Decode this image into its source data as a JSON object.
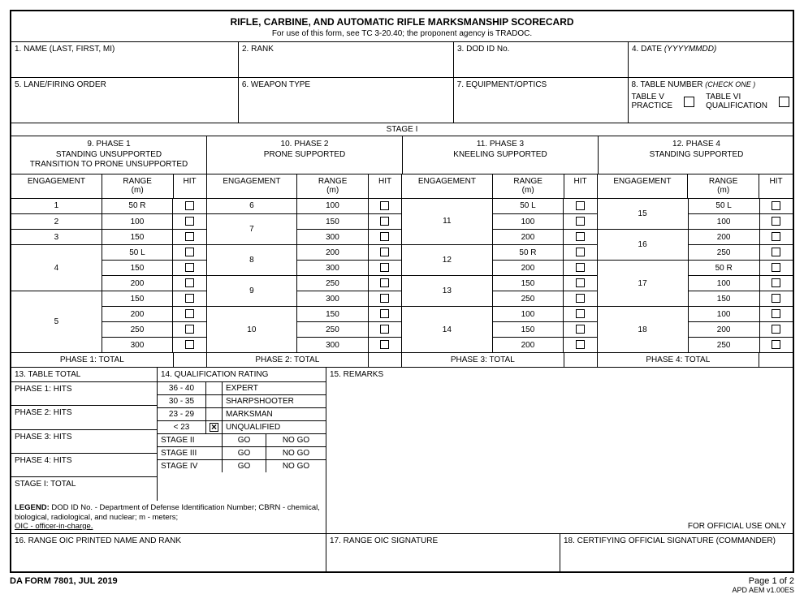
{
  "title": "RIFLE, CARBINE, AND AUTOMATIC RIFLE MARKSMANSHIP SCORECARD",
  "subtitle": "For use of this form, see TC 3-20.40; the proponent agency is TRADOC.",
  "fields_row1": {
    "name": "1. NAME (LAST, FIRST, MI)",
    "rank": "2. RANK",
    "dod": "3. DOD ID No.",
    "date_lbl": "4. DATE ",
    "date_hint": "(YYYYMMDD)"
  },
  "fields_row2": {
    "lane": "5. LANE/FIRING ORDER",
    "weapon": "6. WEAPON TYPE",
    "equip": "7. EQUIPMENT/OPTICS",
    "table_lbl": "8. TABLE NUMBER ",
    "table_hint": "(CHECK ONE )",
    "tbl5a": "TABLE V",
    "tbl5b": "PRACTICE",
    "tbl6a": "TABLE VI",
    "tbl6b": "QUALIFICATION"
  },
  "stage_label": "STAGE I",
  "phases": [
    {
      "num": "9. PHASE 1",
      "l1": "STANDING UNSUPPORTED",
      "l2": "TRANSITION TO PRONE UNSUPPORTED"
    },
    {
      "num": "10. PHASE 2",
      "l1": "PRONE SUPPORTED",
      "l2": ""
    },
    {
      "num": "11. PHASE 3",
      "l1": "KNEELING SUPPORTED",
      "l2": ""
    },
    {
      "num": "12. PHASE 4",
      "l1": "STANDING SUPPORTED",
      "l2": ""
    }
  ],
  "col_heads": {
    "eng": "ENGAGEMENT",
    "range": "RANGE\n(m)",
    "hit": "HIT"
  },
  "phase1_rows": [
    {
      "eng": "1",
      "range": "50 R",
      "span": 1
    },
    {
      "eng": "2",
      "range": "100",
      "span": 1
    },
    {
      "eng": "3",
      "range": "150",
      "span": 1
    },
    {
      "eng": "4",
      "range": "50 L",
      "span": 3,
      "more": [
        "150",
        "200"
      ]
    },
    {
      "eng": "5",
      "range": "150",
      "span": 4,
      "more": [
        "200",
        "250",
        "300"
      ]
    }
  ],
  "phase2_rows": [
    {
      "eng": "6",
      "range": "100",
      "span": 1
    },
    {
      "eng": "7",
      "range": "150",
      "span": 2,
      "more": [
        "300"
      ]
    },
    {
      "eng": "8",
      "range": "200",
      "span": 2,
      "more": [
        "300"
      ]
    },
    {
      "eng": "9",
      "range": "250",
      "span": 2,
      "more": [
        "300"
      ]
    },
    {
      "eng": "10",
      "range": "150",
      "span": 3,
      "more": [
        "250",
        "300"
      ]
    }
  ],
  "phase3_rows": [
    {
      "eng": "11",
      "range": "50 L",
      "span": 3,
      "more": [
        "100",
        "200"
      ]
    },
    {
      "eng": "12",
      "range": "50 R",
      "span": 2,
      "more": [
        "200"
      ]
    },
    {
      "eng": "13",
      "range": "150",
      "span": 2,
      "more": [
        "250"
      ]
    },
    {
      "eng": "14",
      "range": "100",
      "span": 3,
      "more": [
        "150",
        "200"
      ]
    }
  ],
  "phase4_rows": [
    {
      "eng": "15",
      "range": "50 L",
      "span": 2,
      "more": [
        "100"
      ]
    },
    {
      "eng": "16",
      "range": "200",
      "span": 2,
      "more": [
        "250"
      ]
    },
    {
      "eng": "17",
      "range": "50 R",
      "span": 3,
      "more": [
        "100",
        "150"
      ]
    },
    {
      "eng": "18",
      "range": "100",
      "span": 3,
      "more": [
        "200",
        "250"
      ]
    }
  ],
  "phase_totals": [
    "PHASE 1:  TOTAL",
    "PHASE 2:  TOTAL",
    "PHASE 3:  TOTAL",
    "PHASE 4:  TOTAL"
  ],
  "table_total_hdr": "13. TABLE TOTAL",
  "qual_hdr": "14. QUALIFICATION RATING",
  "remarks_hdr": "15. REMARKS",
  "table_total_lines": [
    "PHASE 1: HITS",
    "PHASE 2: HITS",
    "PHASE 3: HITS",
    "PHASE 4: HITS",
    "STAGE I: TOTAL"
  ],
  "qual_lines": [
    {
      "r": "36 - 40",
      "chk": false,
      "lbl": "EXPERT"
    },
    {
      "r": "30 - 35",
      "chk": false,
      "lbl": "SHARPSHOOTER"
    },
    {
      "r": "23 - 29",
      "chk": false,
      "lbl": "MARKSMAN"
    },
    {
      "r": "< 23",
      "chk": true,
      "lbl": "UNQUALIFIED"
    }
  ],
  "stage_lines": [
    {
      "s": "STAGE II",
      "g": "GO",
      "n": "NO GO"
    },
    {
      "s": "STAGE III",
      "g": "GO",
      "n": "NO GO"
    },
    {
      "s": "STAGE IV",
      "g": "GO",
      "n": "NO GO"
    }
  ],
  "legend_bold": "LEGEND:",
  "legend_text": " DOD ID No. - Department of Defense Identification Number; CBRN - chemical, biological, radiological, and nuclear; m - meters; ",
  "legend_u": "OIC - officer-in-charge.",
  "ofu": "FOR OFFICIAL USE ONLY",
  "sig": {
    "a": "16. RANGE OIC PRINTED NAME AND RANK",
    "b": "17. RANGE OIC SIGNATURE",
    "c": "18. CERTIFYING OFFICIAL SIGNATURE (COMMANDER)"
  },
  "form_no": "DA FORM 7801, JUL 2019",
  "page": "Page 1 of 2",
  "ver": "APD AEM v1.00ES",
  "widths": {
    "phase_block": 241,
    "eng": 112,
    "range": 88,
    "hit": 41,
    "eng_total": 200
  }
}
